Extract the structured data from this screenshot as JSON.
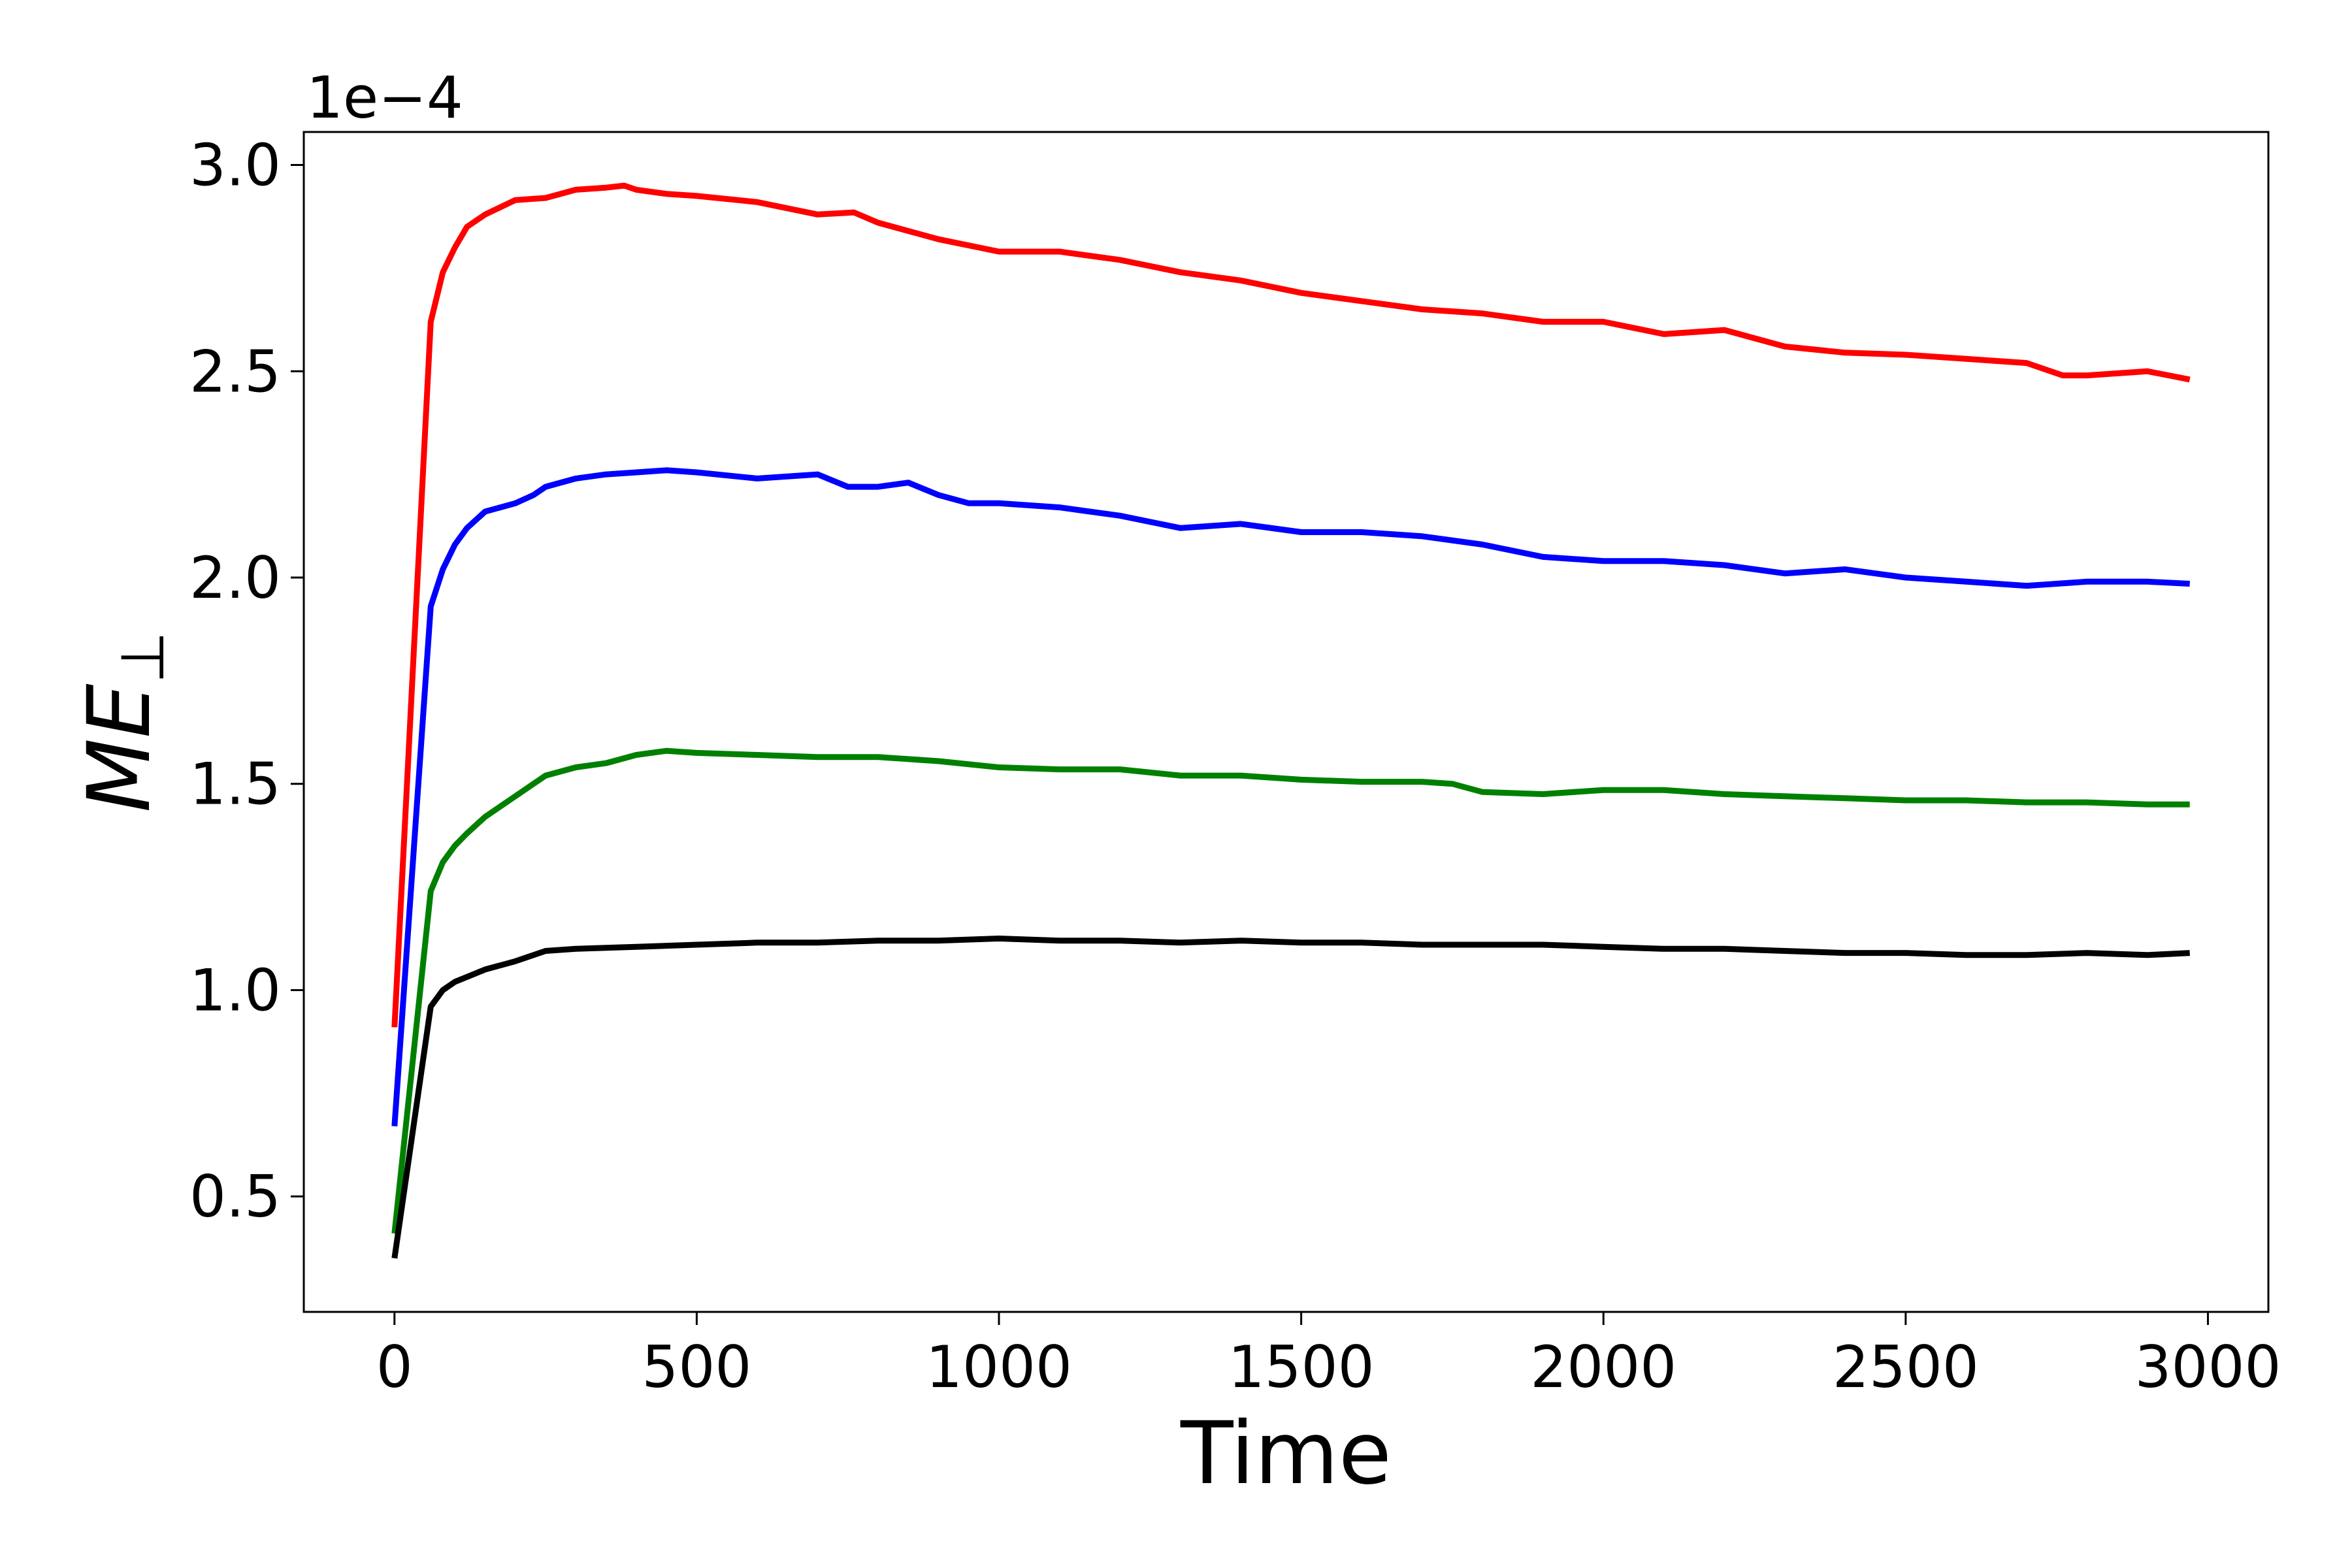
{
  "chart_data": {
    "type": "line",
    "title": "",
    "xlabel": "Time",
    "ylabel": "ME",
    "ylabel_subscript": "⊥",
    "y_offset_label": "1e−4",
    "y_scale_factor": 0.0001,
    "xlim": [
      -150,
      3100
    ],
    "ylim": [
      0.22,
      3.08
    ],
    "xticks": [
      0,
      500,
      1000,
      1500,
      2000,
      2500,
      3000
    ],
    "xtick_labels": [
      "0",
      "500",
      "1000",
      "1500",
      "2000",
      "2500",
      "3000"
    ],
    "yticks": [
      0.5,
      1.0,
      1.5,
      2.0,
      2.5,
      3.0
    ],
    "ytick_labels": [
      "0.5",
      "1.0",
      "1.5",
      "2.0",
      "2.5",
      "3.0"
    ],
    "grid": false,
    "legend": "none",
    "series": [
      {
        "color": "#ff0000",
        "x": [
          0,
          60,
          80,
          100,
          120,
          150,
          200,
          250,
          300,
          350,
          380,
          400,
          450,
          500,
          600,
          700,
          760,
          800,
          900,
          1000,
          1100,
          1200,
          1300,
          1400,
          1500,
          1600,
          1700,
          1800,
          1900,
          2000,
          2100,
          2200,
          2300,
          2400,
          2500,
          2600,
          2700,
          2760,
          2800,
          2900,
          2970
        ],
        "y": [
          0.91,
          2.62,
          2.74,
          2.8,
          2.85,
          2.88,
          2.915,
          2.92,
          2.94,
          2.945,
          2.95,
          2.94,
          2.93,
          2.925,
          2.91,
          2.88,
          2.885,
          2.86,
          2.82,
          2.79,
          2.79,
          2.77,
          2.74,
          2.72,
          2.69,
          2.67,
          2.65,
          2.64,
          2.62,
          2.62,
          2.59,
          2.6,
          2.56,
          2.545,
          2.54,
          2.53,
          2.52,
          2.49,
          2.49,
          2.5,
          2.48
        ]
      },
      {
        "color": "#0000ff",
        "x": [
          0,
          60,
          80,
          100,
          120,
          150,
          200,
          230,
          250,
          300,
          350,
          400,
          450,
          500,
          600,
          700,
          750,
          800,
          850,
          900,
          950,
          1000,
          1100,
          1200,
          1300,
          1400,
          1500,
          1600,
          1700,
          1800,
          1900,
          2000,
          2100,
          2200,
          2300,
          2400,
          2500,
          2600,
          2700,
          2800,
          2900,
          2970
        ],
        "y": [
          0.67,
          1.93,
          2.02,
          2.08,
          2.12,
          2.16,
          2.18,
          2.2,
          2.22,
          2.24,
          2.25,
          2.255,
          2.26,
          2.255,
          2.24,
          2.25,
          2.22,
          2.22,
          2.23,
          2.2,
          2.18,
          2.18,
          2.17,
          2.15,
          2.12,
          2.13,
          2.11,
          2.11,
          2.1,
          2.08,
          2.05,
          2.04,
          2.04,
          2.03,
          2.01,
          2.02,
          2.0,
          1.99,
          1.98,
          1.99,
          1.99,
          1.985
        ]
      },
      {
        "color": "#008000",
        "x": [
          0,
          60,
          80,
          100,
          120,
          150,
          200,
          230,
          250,
          300,
          350,
          400,
          450,
          500,
          600,
          700,
          800,
          900,
          1000,
          1100,
          1200,
          1300,
          1400,
          1500,
          1600,
          1700,
          1750,
          1800,
          1900,
          2000,
          2100,
          2200,
          2300,
          2400,
          2500,
          2600,
          2700,
          2800,
          2900,
          2970
        ],
        "y": [
          0.41,
          1.24,
          1.31,
          1.35,
          1.38,
          1.42,
          1.47,
          1.5,
          1.52,
          1.54,
          1.55,
          1.57,
          1.58,
          1.575,
          1.57,
          1.565,
          1.565,
          1.555,
          1.54,
          1.535,
          1.535,
          1.52,
          1.52,
          1.51,
          1.505,
          1.505,
          1.5,
          1.48,
          1.475,
          1.485,
          1.485,
          1.475,
          1.47,
          1.465,
          1.46,
          1.46,
          1.455,
          1.455,
          1.45,
          1.45
        ]
      },
      {
        "color": "#000000",
        "x": [
          0,
          60,
          80,
          100,
          150,
          200,
          250,
          300,
          400,
          500,
          600,
          700,
          800,
          900,
          1000,
          1100,
          1200,
          1300,
          1400,
          1500,
          1600,
          1700,
          1800,
          1900,
          2000,
          2100,
          2200,
          2300,
          2400,
          2500,
          2600,
          2700,
          2800,
          2900,
          2970
        ],
        "y": [
          0.35,
          0.96,
          1.0,
          1.02,
          1.05,
          1.07,
          1.095,
          1.1,
          1.105,
          1.11,
          1.115,
          1.115,
          1.12,
          1.12,
          1.125,
          1.12,
          1.12,
          1.115,
          1.12,
          1.115,
          1.115,
          1.11,
          1.11,
          1.11,
          1.105,
          1.1,
          1.1,
          1.095,
          1.09,
          1.09,
          1.085,
          1.085,
          1.09,
          1.085,
          1.09
        ]
      }
    ]
  }
}
